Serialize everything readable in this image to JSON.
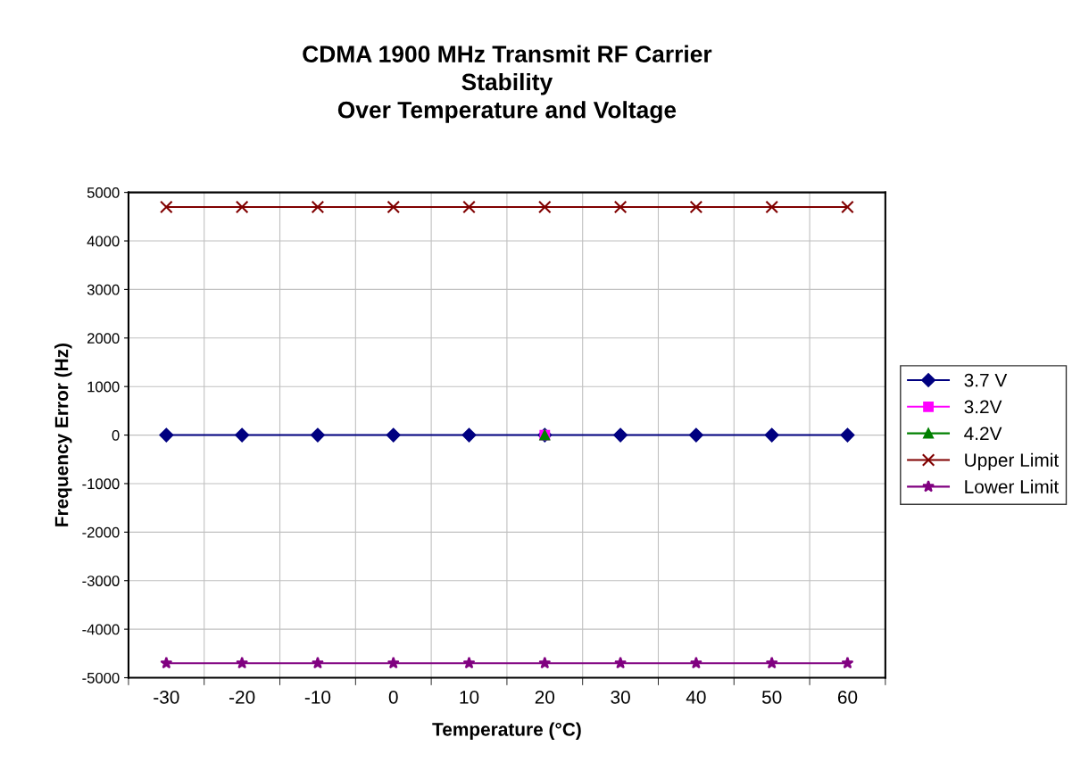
{
  "chart_data": {
    "type": "line",
    "title": "CDMA 1900 MHz Transmit RF Carrier\nStability\nOver Temperature and Voltage",
    "xlabel": "Temperature (°C)",
    "ylabel": "Frequency Error (Hz)",
    "categories": [
      "-30",
      "-20",
      "-10",
      "0",
      "10",
      "20",
      "30",
      "40",
      "50",
      "60"
    ],
    "series": [
      {
        "name": "3.7 V",
        "color": "#000080",
        "marker": "diamond",
        "values": [
          0,
          0,
          0,
          0,
          0,
          0,
          0,
          0,
          0,
          0
        ]
      },
      {
        "name": "3.2V",
        "color": "#ff00ff",
        "marker": "square",
        "values": [
          null,
          null,
          null,
          null,
          null,
          0,
          null,
          null,
          null,
          null
        ]
      },
      {
        "name": "4.2V",
        "color": "#008000",
        "marker": "triangle",
        "values": [
          null,
          null,
          null,
          null,
          null,
          0,
          null,
          null,
          null,
          null
        ]
      },
      {
        "name": "Upper Limit",
        "color": "#800000",
        "marker": "cross",
        "values": [
          4700,
          4700,
          4700,
          4700,
          4700,
          4700,
          4700,
          4700,
          4700,
          4700
        ]
      },
      {
        "name": "Lower Limit",
        "color": "#800080",
        "marker": "star",
        "values": [
          -4700,
          -4700,
          -4700,
          -4700,
          -4700,
          -4700,
          -4700,
          -4700,
          -4700,
          -4700
        ]
      }
    ],
    "ylim": [
      -5000,
      5000
    ],
    "yticks": [
      -5000,
      -4000,
      -3000,
      -2000,
      -1000,
      0,
      1000,
      2000,
      3000,
      4000,
      5000
    ],
    "grid": true,
    "legend": "right",
    "line_style": "solid"
  }
}
